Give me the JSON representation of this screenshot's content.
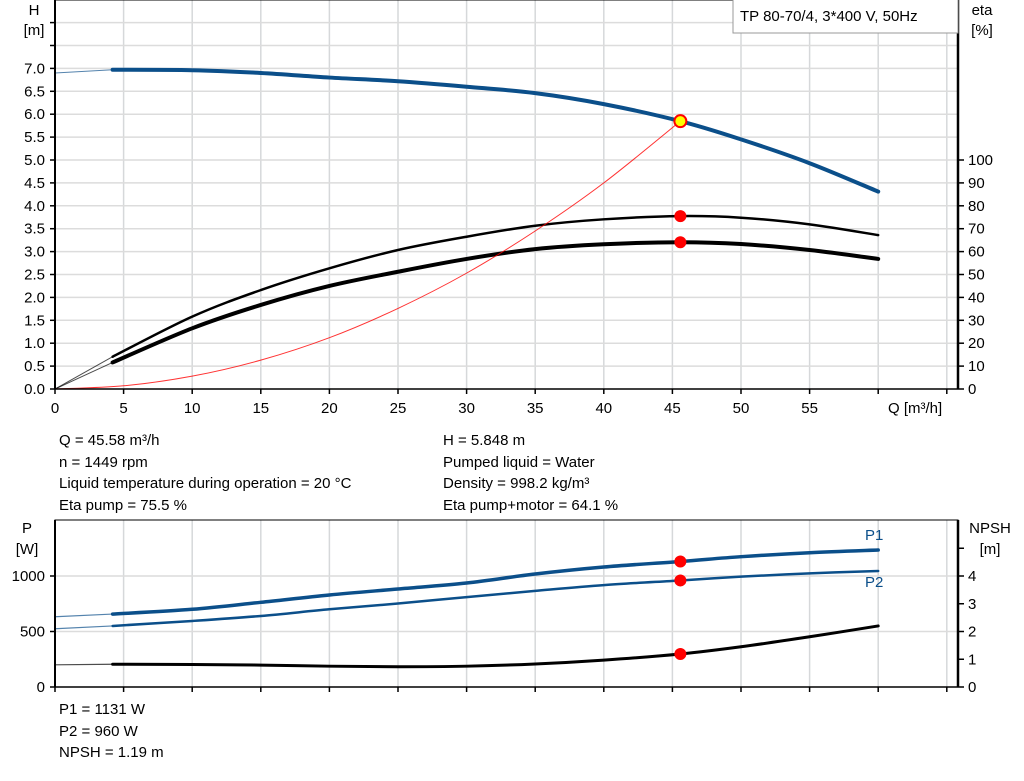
{
  "chart_data": [
    {
      "type": "line",
      "legend_box": "TP 80-70/4, 3*400 V, 50Hz",
      "xlabel": "Q [m³/h]",
      "ylabel": "H",
      "ylabel_unit": "[m]",
      "y2label": "eta",
      "y2label_unit": "[%]",
      "xlim": [
        0,
        65
      ],
      "ylim": [
        0,
        8.5
      ],
      "y2lim": [
        0,
        170
      ],
      "grid": true,
      "x_ticks": [
        "0",
        "5",
        "10",
        "15",
        "20",
        "25",
        "30",
        "35",
        "40",
        "45",
        "50",
        "55"
      ],
      "y_ticks": [
        "0.0",
        "0.5",
        "1.0",
        "1.5",
        "2.0",
        "2.5",
        "3.0",
        "3.5",
        "4.0",
        "4.5",
        "5.0",
        "5.5",
        "6.0",
        "6.5",
        "7.0"
      ],
      "y2_ticks": [
        "0",
        "10",
        "20",
        "30",
        "40",
        "50",
        "60",
        "70",
        "80",
        "90",
        "100"
      ],
      "series": [
        {
          "axis": "H",
          "color": "#0b4f8a",
          "q": [
            0,
            4.2,
            10,
            15,
            20,
            25,
            30,
            35,
            40,
            45.58,
            50,
            55,
            60
          ],
          "values": [
            6.9,
            6.97,
            6.96,
            6.9,
            6.8,
            6.72,
            6.6,
            6.46,
            6.22,
            5.848,
            5.45,
            4.93,
            4.31
          ]
        },
        {
          "axis": "eta",
          "color": "#000000",
          "q": [
            0,
            4.2,
            10,
            15,
            20,
            25,
            30,
            35,
            40,
            45.58,
            50,
            55,
            60
          ],
          "values": [
            0,
            14.1,
            31.6,
            43.2,
            52.7,
            60.7,
            66.5,
            71.3,
            74.1,
            75.5,
            74.8,
            71.9,
            67.2
          ]
        },
        {
          "axis": "eta",
          "color": "#000000",
          "q": [
            0,
            4.2,
            10,
            15,
            20,
            25,
            30,
            35,
            40,
            45.58,
            50,
            55,
            60
          ],
          "values": [
            0,
            11.6,
            26.5,
            36.7,
            45.0,
            51.2,
            56.8,
            61.1,
            63.2,
            64.1,
            63.3,
            60.7,
            56.8
          ]
        },
        {
          "axis": "H",
          "color": "#ff0000",
          "q": [
            0,
            5,
            10,
            15,
            20,
            25,
            30,
            35,
            40,
            45.58
          ],
          "values": [
            0,
            0.07,
            0.28,
            0.63,
            1.12,
            1.76,
            2.53,
            3.45,
            4.5,
            5.848
          ]
        }
      ],
      "operating_point": {
        "q": 45.58,
        "h": 5.848,
        "eta_pump": 75.5,
        "eta_total": 64.1,
        "marker_color": "#ffff00",
        "ring_color": "#ff0000"
      }
    },
    {
      "type": "line",
      "ylabel": "P",
      "ylabel_unit": "[W]",
      "y2label": "NPSH",
      "y2label_unit": "[m]",
      "xlim": [
        0,
        65
      ],
      "ylim": [
        0,
        1500
      ],
      "y2lim": [
        0,
        6
      ],
      "grid": true,
      "y_ticks": [
        "0",
        "500",
        "1000"
      ],
      "y2_ticks": [
        "0",
        "1",
        "2",
        "3",
        "4"
      ],
      "series": [
        {
          "name": "P1",
          "axis": "P",
          "color": "#0b4f8a",
          "q": [
            0,
            4.2,
            10,
            15,
            20,
            25,
            30,
            35,
            40,
            45.58,
            50,
            55,
            60
          ],
          "values": [
            633,
            657,
            700,
            763,
            829,
            883,
            937,
            1018,
            1081,
            1131,
            1174,
            1210,
            1234
          ]
        },
        {
          "name": "P2",
          "axis": "P",
          "color": "#0b4f8a",
          "q": [
            0,
            4.2,
            10,
            15,
            20,
            25,
            30,
            35,
            40,
            45.58,
            50,
            55,
            60
          ],
          "values": [
            525,
            550,
            595,
            640,
            700,
            752,
            810,
            866,
            918,
            960,
            994,
            1024,
            1045
          ]
        },
        {
          "axis": "NPSH",
          "color": "#000000",
          "q": [
            0,
            4.2,
            10,
            15,
            20,
            25,
            30,
            35,
            40,
            45.58,
            50,
            55,
            60
          ],
          "values": [
            0.8,
            0.82,
            0.81,
            0.79,
            0.75,
            0.73,
            0.75,
            0.83,
            0.97,
            1.19,
            1.45,
            1.81,
            2.2
          ]
        }
      ],
      "operating_point": {
        "q": 45.58,
        "p1": 1131,
        "p2": 960,
        "npsh": 1.19,
        "marker_color": "#ff0000"
      }
    }
  ],
  "info_left": [
    "Q = 45.58 m³/h",
    "n = 1449 rpm",
    "Liquid temperature during operation = 20 °C",
    "Eta pump = 75.5 %"
  ],
  "info_right": [
    "H = 5.848 m",
    "Pumped liquid = Water",
    "Density = 998.2 kg/m³",
    "Eta pump+motor = 64.1 %"
  ],
  "info_bottom": [
    "P1 = 1131 W",
    "P2 = 960 W",
    "NPSH = 1.19 m"
  ]
}
